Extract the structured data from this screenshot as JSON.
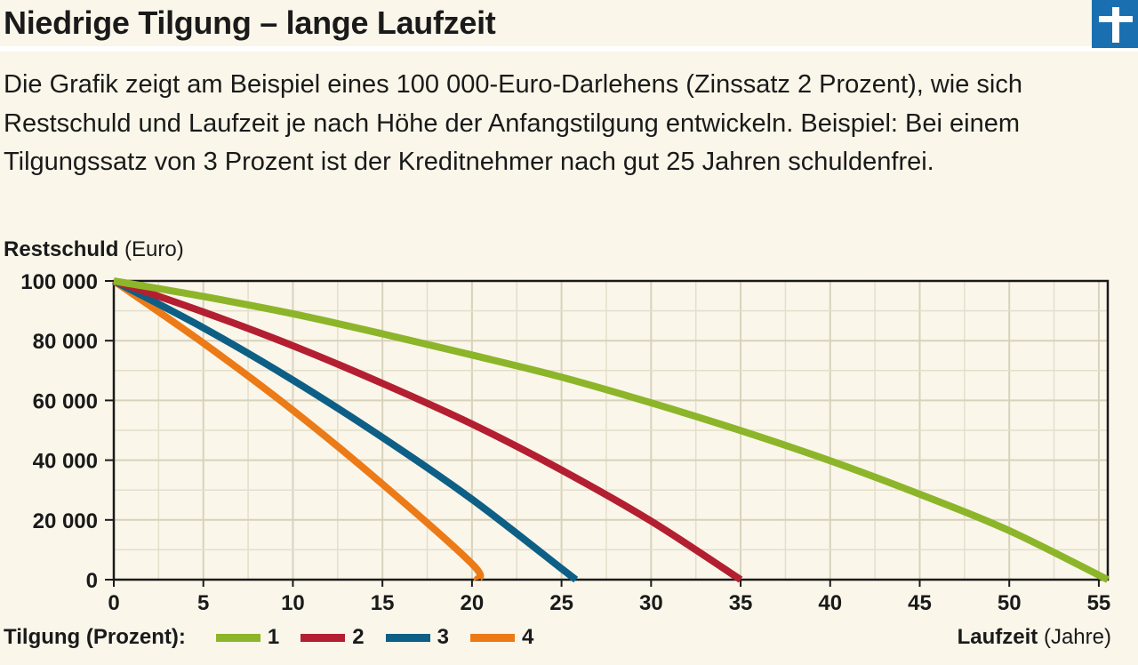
{
  "header": {
    "title": "Niedrige Tilgung – lange Laufzeit",
    "logo_icon": "stiftung-warentest-logo-icon",
    "logo_color": "#1a6fb0"
  },
  "description": "Die Grafik zeigt am Beispiel eines 100 000-Euro-Darlehens (Zinssatz 2 Prozent), wie sich Restschuld und Laufzeit je nach Höhe der Anfangstilgung entwickeln. Beispiel: Bei einem Tilgungssatz von 3 Prozent ist der Kreditnehmer nach gut 25 Jahren schuldenfrei.",
  "chart_data": {
    "type": "line",
    "ylabel_bold": "Restschuld",
    "ylabel_unit": "(Euro)",
    "xlabel_bold": "Laufzeit",
    "xlabel_unit": "(Jahre)",
    "xlim": [
      0,
      55.5
    ],
    "ylim": [
      0,
      100000
    ],
    "x_ticks": [
      0,
      5,
      10,
      15,
      20,
      25,
      30,
      35,
      40,
      45,
      50,
      55
    ],
    "x_tick_labels": [
      "0",
      "5",
      "10",
      "15",
      "20",
      "25",
      "30",
      "35",
      "40",
      "45",
      "50",
      "55"
    ],
    "y_ticks": [
      0,
      20000,
      40000,
      60000,
      80000,
      100000
    ],
    "y_tick_labels": [
      "0",
      "20 000",
      "40 000",
      "60 000",
      "80 000",
      "100 000"
    ],
    "grid": true,
    "legend_title": "Tilgung (Prozent):",
    "legend_position": "bottom-left",
    "series": [
      {
        "name": "1",
        "color": "#8db52a",
        "x": [
          0,
          5,
          10,
          15,
          20,
          25,
          30,
          35,
          40,
          45,
          50,
          55.5
        ],
        "y": [
          100000,
          94800,
          89000,
          82300,
          75200,
          67800,
          59200,
          49900,
          39800,
          28600,
          16400,
          0
        ]
      },
      {
        "name": "2",
        "color": "#b31f31",
        "x": [
          0,
          5,
          10,
          15,
          20,
          25,
          30,
          35
        ],
        "y": [
          100000,
          89600,
          78300,
          65700,
          52100,
          36700,
          19600,
          0
        ]
      },
      {
        "name": "3",
        "color": "#0d5f86",
        "x": [
          0,
          5,
          10,
          15,
          20,
          25,
          25.8
        ],
        "y": [
          100000,
          84300,
          66800,
          47600,
          26900,
          3700,
          0
        ]
      },
      {
        "name": "4",
        "color": "#ec7a16",
        "x": [
          0,
          5,
          10,
          15,
          20,
          20.3
        ],
        "y": [
          100000,
          79200,
          56700,
          32000,
          5300,
          0
        ]
      }
    ]
  }
}
